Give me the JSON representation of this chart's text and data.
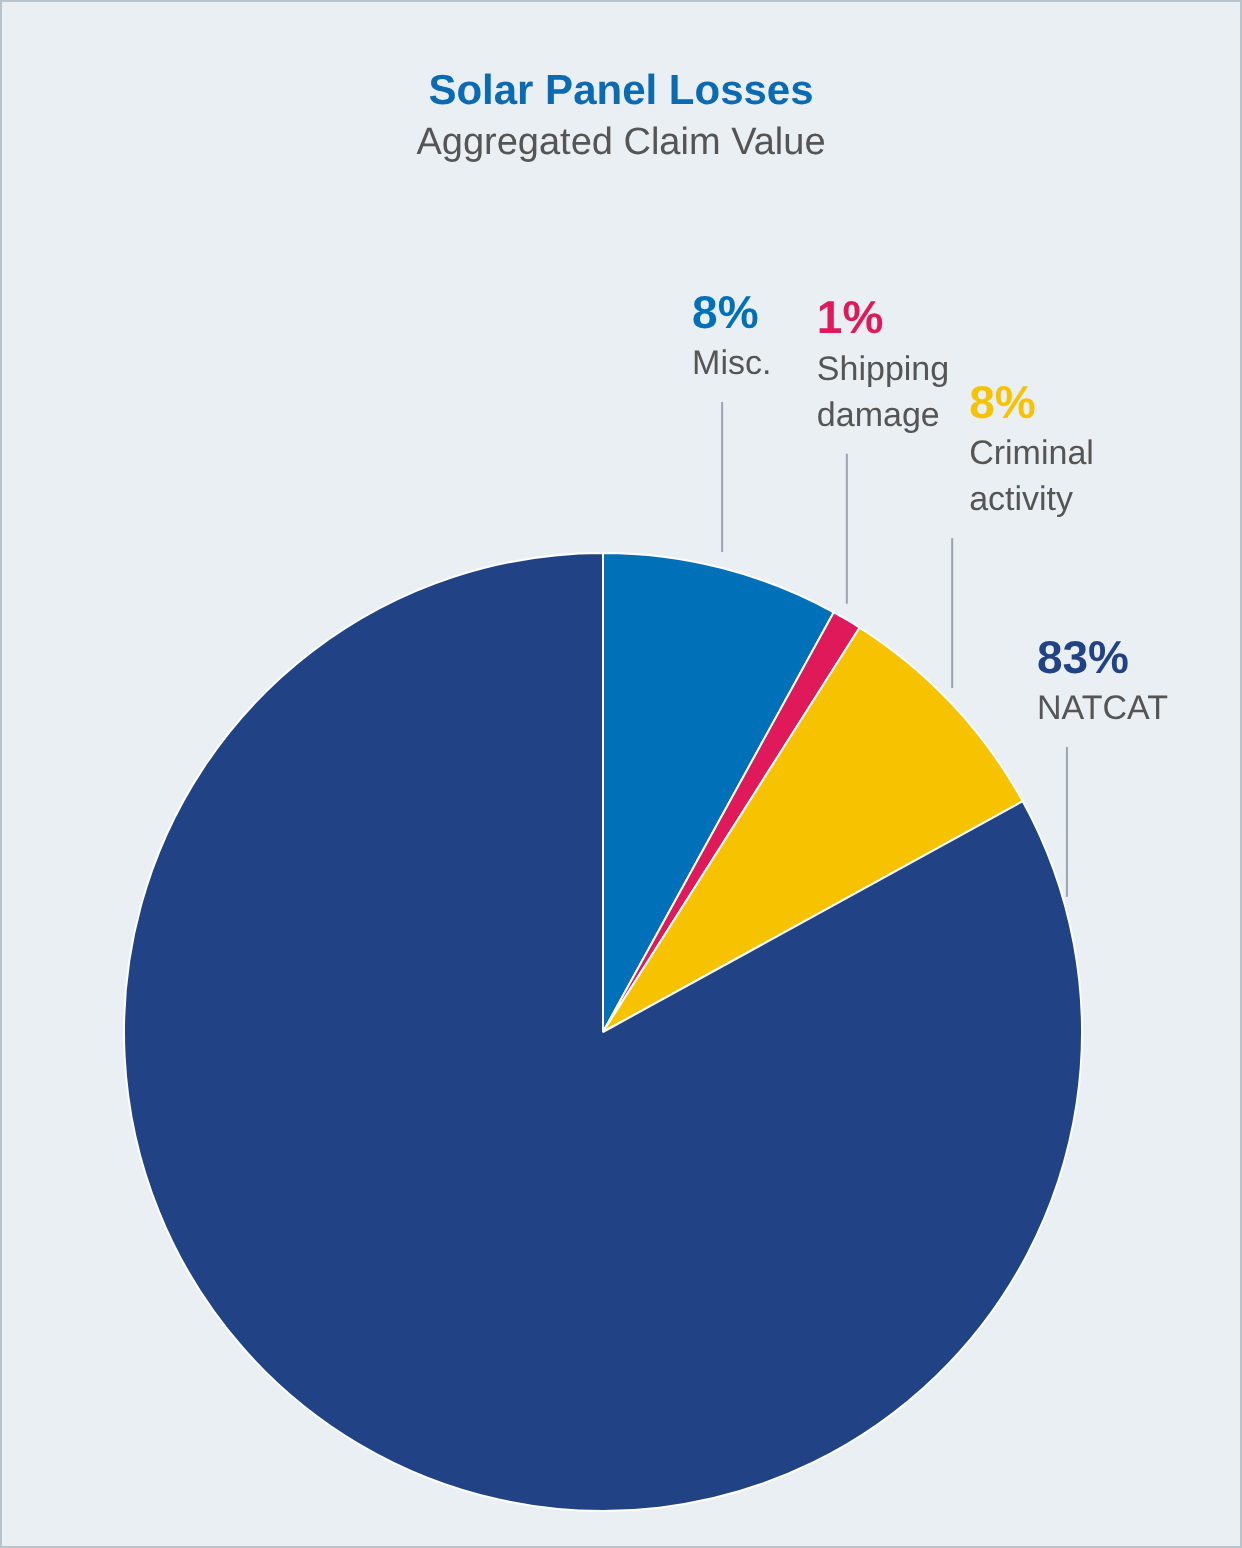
{
  "chart_data": {
    "type": "pie",
    "title": "Solar Panel Losses",
    "subtitle": "Aggregated Claim Value",
    "categories": [
      "Misc.",
      "Shipping damage",
      "Criminal activity",
      "NATCAT"
    ],
    "values": [
      8,
      1,
      8,
      83
    ],
    "value_labels": [
      "8%",
      "1%",
      "8%",
      "83%"
    ],
    "colors": [
      "#0070b8",
      "#e0195a",
      "#f7c200",
      "#214385"
    ],
    "legend": false
  }
}
